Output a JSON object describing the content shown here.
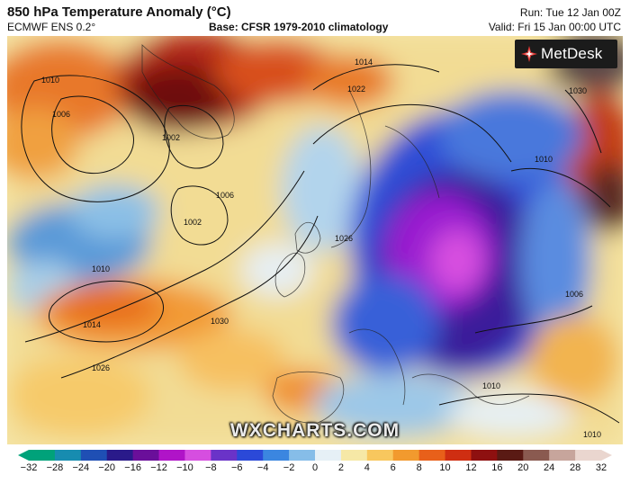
{
  "header": {
    "title": "850 hPa Temperature Anomaly (°C)",
    "model": "ECMWF ENS 0.2°",
    "base": "Base: CFSR 1979-2010 climatology",
    "run": "Run: Tue 12 Jan 00Z",
    "valid": "Valid: Fri 15 Jan 00:00 UTC"
  },
  "logo": {
    "name": "MetDesk",
    "color": "#1b1b1b",
    "mark_color": "#e53935"
  },
  "watermark": "WXCHARTS.COM",
  "isobar_labels": [
    "1010",
    "1006",
    "1002",
    "1006",
    "1002",
    "1010",
    "1014",
    "1026",
    "1030",
    "1022",
    "1026",
    "1014",
    "1010",
    "1030",
    "1006",
    "1010",
    "1010"
  ],
  "colorbar": {
    "ticks": [
      "−32",
      "−28",
      "−24",
      "−20",
      "−16",
      "−12",
      "−10",
      "−8",
      "−6",
      "−4",
      "−2",
      "0",
      "2",
      "4",
      "6",
      "8",
      "10",
      "12",
      "16",
      "20",
      "24",
      "28",
      "32"
    ],
    "colors": [
      "#00a27a",
      "#178cb0",
      "#1f4fb4",
      "#2a1a8a",
      "#6a0f9a",
      "#b014c8",
      "#d64ee0",
      "#6a33c8",
      "#2b49d8",
      "#3b86e0",
      "#86bde8",
      "#e6f0f6",
      "#f6e8a6",
      "#f8c75e",
      "#f29a2e",
      "#e8601a",
      "#cf2e12",
      "#8e1010",
      "#5a1a14",
      "#8a5a50",
      "#c7a59c",
      "#ead6cf"
    ]
  }
}
